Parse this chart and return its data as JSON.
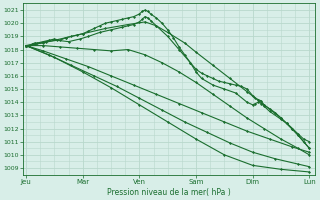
{
  "bg_color": "#d8eee8",
  "grid_color": "#b8d8cc",
  "line_color": "#1a6e2e",
  "ylabel_text": "Pression niveau de la mer( hPa )",
  "ylim": [
    1008.5,
    1021.5
  ],
  "yticks": [
    1009,
    1010,
    1011,
    1012,
    1013,
    1014,
    1015,
    1016,
    1017,
    1018,
    1019,
    1020,
    1021
  ],
  "xtick_labels": [
    "Jeu",
    "Mar",
    "Ven",
    "Sam",
    "Dim",
    "Lun"
  ],
  "xtick_positions": [
    0,
    1,
    2,
    3,
    4,
    5
  ],
  "lines": [
    {
      "x": [
        0,
        0.05,
        0.1,
        0.15,
        0.2,
        0.3,
        0.4,
        0.5,
        0.6,
        0.7,
        0.8,
        0.9,
        1.0,
        1.1,
        1.2,
        1.3,
        1.4,
        1.5,
        1.6,
        1.7,
        1.8,
        1.9,
        2.0,
        2.05,
        2.1,
        2.15,
        2.2,
        2.3,
        2.4,
        2.5,
        2.6,
        2.7,
        2.8,
        2.9,
        3.0,
        3.1,
        3.2,
        3.3,
        3.4,
        3.5,
        3.6,
        3.7,
        3.8,
        3.9,
        4.0,
        4.05,
        4.1,
        4.15,
        4.2,
        4.3,
        4.4,
        4.5,
        4.6,
        4.7,
        4.8,
        4.9,
        5.0
      ],
      "y": [
        1018.3,
        1018.3,
        1018.4,
        1018.5,
        1018.5,
        1018.6,
        1018.7,
        1018.8,
        1018.7,
        1018.9,
        1019.0,
        1019.1,
        1019.2,
        1019.4,
        1019.6,
        1019.8,
        1020.0,
        1020.1,
        1020.2,
        1020.3,
        1020.4,
        1020.5,
        1020.7,
        1020.9,
        1021.0,
        1020.9,
        1020.7,
        1020.4,
        1020.0,
        1019.5,
        1018.9,
        1018.2,
        1017.6,
        1017.0,
        1016.5,
        1016.2,
        1016.0,
        1015.8,
        1015.6,
        1015.5,
        1015.4,
        1015.3,
        1015.2,
        1015.0,
        1014.5,
        1014.3,
        1014.2,
        1014.1,
        1013.8,
        1013.5,
        1013.2,
        1012.8,
        1012.4,
        1012.0,
        1011.6,
        1011.2,
        1011.0
      ],
      "marker": "D",
      "markersize": 1.2,
      "lw": 0.8
    },
    {
      "x": [
        0,
        0.3,
        0.7,
        1.0,
        1.4,
        1.8,
        2.1,
        2.3,
        2.5,
        2.8,
        3.0,
        3.3,
        3.6,
        3.9,
        4.2,
        4.5,
        4.8,
        5.0
      ],
      "y": [
        1018.3,
        1018.5,
        1018.9,
        1019.2,
        1019.6,
        1019.9,
        1020.1,
        1019.8,
        1019.3,
        1018.5,
        1017.8,
        1016.8,
        1015.8,
        1014.8,
        1013.8,
        1012.8,
        1011.5,
        1010.5
      ],
      "marker": "D",
      "markersize": 1.2,
      "lw": 0.8
    },
    {
      "x": [
        0,
        0.3,
        0.6,
        0.9,
        1.2,
        1.5,
        1.8,
        2.1,
        2.4,
        2.7,
        3.0,
        3.3,
        3.6,
        3.9,
        4.2,
        4.5,
        4.8,
        5.0
      ],
      "y": [
        1018.3,
        1018.3,
        1018.2,
        1018.1,
        1018.0,
        1017.9,
        1018.0,
        1017.6,
        1017.0,
        1016.3,
        1015.5,
        1014.6,
        1013.7,
        1012.8,
        1012.0,
        1011.2,
        1010.5,
        1010.0
      ],
      "marker": "D",
      "markersize": 1.2,
      "lw": 0.8
    },
    {
      "x": [
        0,
        0.3,
        0.7,
        1.1,
        1.5,
        1.9,
        2.3,
        2.7,
        3.1,
        3.5,
        3.9,
        4.3,
        4.7,
        5.0
      ],
      "y": [
        1018.3,
        1017.9,
        1017.3,
        1016.7,
        1016.0,
        1015.3,
        1014.6,
        1013.9,
        1013.2,
        1012.5,
        1011.8,
        1011.2,
        1010.6,
        1010.2
      ],
      "marker": "D",
      "markersize": 1.2,
      "lw": 0.8
    },
    {
      "x": [
        0,
        0.4,
        0.8,
        1.2,
        1.6,
        2.0,
        2.4,
        2.8,
        3.2,
        3.6,
        4.0,
        4.4,
        4.8,
        5.0
      ],
      "y": [
        1018.3,
        1017.6,
        1016.8,
        1016.0,
        1015.2,
        1014.3,
        1013.4,
        1012.5,
        1011.7,
        1010.9,
        1010.2,
        1009.7,
        1009.3,
        1009.1
      ],
      "marker": "D",
      "markersize": 1.2,
      "lw": 0.8
    },
    {
      "x": [
        0,
        0.5,
        1.0,
        1.5,
        2.0,
        2.5,
        3.0,
        3.5,
        4.0,
        4.5,
        5.0
      ],
      "y": [
        1018.3,
        1017.4,
        1016.3,
        1015.1,
        1013.8,
        1012.5,
        1011.2,
        1010.0,
        1009.2,
        1008.9,
        1008.7
      ],
      "marker": "D",
      "markersize": 1.2,
      "lw": 0.8
    },
    {
      "x": [
        0,
        0.15,
        0.35,
        0.55,
        0.75,
        0.95,
        1.1,
        1.3,
        1.5,
        1.7,
        1.9,
        2.0,
        2.05,
        2.1,
        2.15,
        2.2,
        2.3,
        2.5,
        2.7,
        2.9,
        3.0,
        3.1,
        3.3,
        3.5,
        3.7,
        3.9,
        4.0,
        4.05,
        4.1,
        4.15,
        4.2,
        4.3,
        4.5,
        4.6,
        4.7,
        4.8,
        4.9,
        5.0
      ],
      "y": [
        1018.3,
        1018.4,
        1018.6,
        1018.7,
        1018.6,
        1018.8,
        1019.0,
        1019.3,
        1019.5,
        1019.7,
        1019.9,
        1020.1,
        1020.3,
        1020.5,
        1020.4,
        1020.2,
        1019.8,
        1019.0,
        1018.0,
        1017.0,
        1016.3,
        1015.8,
        1015.3,
        1015.0,
        1014.7,
        1014.0,
        1013.8,
        1013.9,
        1014.0,
        1013.9,
        1013.7,
        1013.3,
        1012.7,
        1012.4,
        1012.0,
        1011.5,
        1011.0,
        1010.5
      ],
      "marker": "D",
      "markersize": 1.2,
      "lw": 0.8
    }
  ]
}
